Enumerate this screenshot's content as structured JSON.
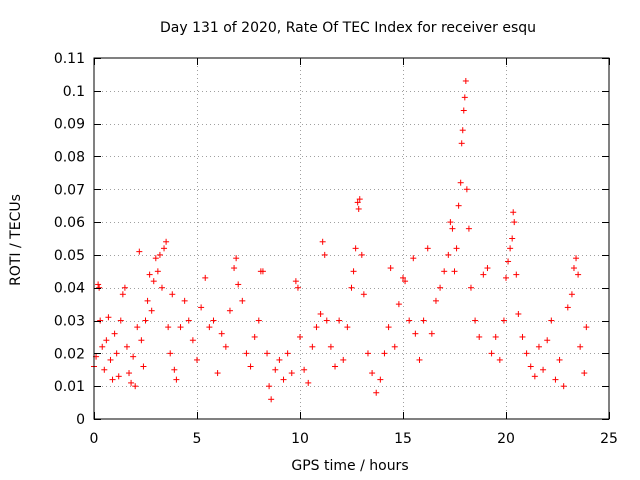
{
  "chart_data": {
    "type": "scatter",
    "title": "Day 131 of 2020, Rate Of TEC Index for receiver esqu",
    "xlabel": "GPS time / hours",
    "ylabel": "ROTI / TECUs",
    "xlim": [
      0,
      25
    ],
    "ylim": [
      0,
      0.11
    ],
    "xticks": [
      0,
      5,
      10,
      15,
      20,
      25
    ],
    "xtick_labels": [
      "0",
      "5",
      "10",
      "15",
      "20",
      "25"
    ],
    "yticks": [
      0,
      0.01,
      0.02,
      0.03,
      0.04,
      0.05,
      0.06,
      0.07,
      0.08,
      0.09,
      0.1,
      0.11
    ],
    "ytick_labels": [
      "0",
      "0.01",
      "0.02",
      "0.03",
      "0.04",
      "0.05",
      "0.06",
      "0.07",
      "0.08",
      "0.09",
      "0.1",
      "0.11"
    ],
    "grid": true,
    "marker": "+",
    "marker_color": "#ff0000",
    "series": [
      {
        "name": "ROTI",
        "points": [
          [
            0.0,
            0.016
          ],
          [
            0.1,
            0.019
          ],
          [
            0.2,
            0.041
          ],
          [
            0.25,
            0.04
          ],
          [
            0.3,
            0.03
          ],
          [
            0.4,
            0.022
          ],
          [
            0.5,
            0.015
          ],
          [
            0.6,
            0.024
          ],
          [
            0.7,
            0.031
          ],
          [
            0.8,
            0.018
          ],
          [
            0.9,
            0.012
          ],
          [
            1.0,
            0.026
          ],
          [
            1.1,
            0.02
          ],
          [
            1.2,
            0.013
          ],
          [
            1.3,
            0.03
          ],
          [
            1.4,
            0.038
          ],
          [
            1.5,
            0.04
          ],
          [
            1.6,
            0.022
          ],
          [
            1.7,
            0.014
          ],
          [
            1.8,
            0.011
          ],
          [
            1.9,
            0.019
          ],
          [
            2.0,
            0.01
          ],
          [
            2.1,
            0.028
          ],
          [
            2.2,
            0.051
          ],
          [
            2.3,
            0.024
          ],
          [
            2.4,
            0.016
          ],
          [
            2.5,
            0.03
          ],
          [
            2.6,
            0.036
          ],
          [
            2.7,
            0.044
          ],
          [
            2.8,
            0.033
          ],
          [
            2.9,
            0.042
          ],
          [
            3.0,
            0.049
          ],
          [
            3.1,
            0.045
          ],
          [
            3.2,
            0.05
          ],
          [
            3.3,
            0.04
          ],
          [
            3.4,
            0.052
          ],
          [
            3.5,
            0.054
          ],
          [
            3.6,
            0.028
          ],
          [
            3.7,
            0.02
          ],
          [
            3.8,
            0.038
          ],
          [
            3.9,
            0.015
          ],
          [
            4.0,
            0.012
          ],
          [
            4.2,
            0.028
          ],
          [
            4.4,
            0.036
          ],
          [
            4.6,
            0.03
          ],
          [
            4.8,
            0.024
          ],
          [
            5.0,
            0.018
          ],
          [
            5.2,
            0.034
          ],
          [
            5.4,
            0.043
          ],
          [
            5.6,
            0.028
          ],
          [
            5.8,
            0.03
          ],
          [
            6.0,
            0.014
          ],
          [
            6.2,
            0.026
          ],
          [
            6.4,
            0.022
          ],
          [
            6.6,
            0.033
          ],
          [
            6.8,
            0.046
          ],
          [
            6.9,
            0.049
          ],
          [
            7.0,
            0.041
          ],
          [
            7.2,
            0.036
          ],
          [
            7.4,
            0.02
          ],
          [
            7.6,
            0.016
          ],
          [
            7.8,
            0.025
          ],
          [
            8.0,
            0.03
          ],
          [
            8.1,
            0.045
          ],
          [
            8.2,
            0.045
          ],
          [
            8.4,
            0.02
          ],
          [
            8.5,
            0.01
          ],
          [
            8.6,
            0.006
          ],
          [
            8.8,
            0.015
          ],
          [
            9.0,
            0.018
          ],
          [
            9.2,
            0.012
          ],
          [
            9.4,
            0.02
          ],
          [
            9.6,
            0.014
          ],
          [
            9.8,
            0.042
          ],
          [
            9.9,
            0.04
          ],
          [
            10.0,
            0.025
          ],
          [
            10.2,
            0.015
          ],
          [
            10.4,
            0.011
          ],
          [
            10.6,
            0.022
          ],
          [
            10.8,
            0.028
          ],
          [
            11.0,
            0.032
          ],
          [
            11.1,
            0.054
          ],
          [
            11.2,
            0.05
          ],
          [
            11.3,
            0.03
          ],
          [
            11.5,
            0.022
          ],
          [
            11.7,
            0.016
          ],
          [
            11.9,
            0.03
          ],
          [
            12.1,
            0.018
          ],
          [
            12.3,
            0.028
          ],
          [
            12.5,
            0.04
          ],
          [
            12.6,
            0.045
          ],
          [
            12.7,
            0.052
          ],
          [
            12.8,
            0.066
          ],
          [
            12.85,
            0.064
          ],
          [
            12.9,
            0.067
          ],
          [
            13.0,
            0.05
          ],
          [
            13.1,
            0.038
          ],
          [
            13.3,
            0.02
          ],
          [
            13.5,
            0.014
          ],
          [
            13.7,
            0.008
          ],
          [
            13.9,
            0.012
          ],
          [
            14.1,
            0.02
          ],
          [
            14.3,
            0.028
          ],
          [
            14.4,
            0.046
          ],
          [
            14.6,
            0.022
          ],
          [
            14.8,
            0.035
          ],
          [
            15.0,
            0.043
          ],
          [
            15.1,
            0.042
          ],
          [
            15.3,
            0.03
          ],
          [
            15.5,
            0.049
          ],
          [
            15.6,
            0.026
          ],
          [
            15.8,
            0.018
          ],
          [
            16.0,
            0.03
          ],
          [
            16.2,
            0.052
          ],
          [
            16.4,
            0.026
          ],
          [
            16.6,
            0.036
          ],
          [
            16.8,
            0.04
          ],
          [
            17.0,
            0.045
          ],
          [
            17.2,
            0.05
          ],
          [
            17.3,
            0.06
          ],
          [
            17.4,
            0.058
          ],
          [
            17.5,
            0.045
          ],
          [
            17.6,
            0.052
          ],
          [
            17.7,
            0.065
          ],
          [
            17.8,
            0.072
          ],
          [
            17.85,
            0.084
          ],
          [
            17.9,
            0.088
          ],
          [
            17.95,
            0.094
          ],
          [
            18.0,
            0.098
          ],
          [
            18.05,
            0.103
          ],
          [
            18.1,
            0.07
          ],
          [
            18.2,
            0.058
          ],
          [
            18.3,
            0.04
          ],
          [
            18.5,
            0.03
          ],
          [
            18.7,
            0.025
          ],
          [
            18.9,
            0.044
          ],
          [
            19.1,
            0.046
          ],
          [
            19.3,
            0.02
          ],
          [
            19.5,
            0.025
          ],
          [
            19.7,
            0.018
          ],
          [
            19.9,
            0.03
          ],
          [
            20.0,
            0.043
          ],
          [
            20.1,
            0.048
          ],
          [
            20.2,
            0.052
          ],
          [
            20.3,
            0.055
          ],
          [
            20.35,
            0.063
          ],
          [
            20.4,
            0.06
          ],
          [
            20.5,
            0.044
          ],
          [
            20.6,
            0.032
          ],
          [
            20.8,
            0.025
          ],
          [
            21.0,
            0.02
          ],
          [
            21.2,
            0.016
          ],
          [
            21.4,
            0.013
          ],
          [
            21.6,
            0.022
          ],
          [
            21.8,
            0.015
          ],
          [
            22.0,
            0.024
          ],
          [
            22.2,
            0.03
          ],
          [
            22.4,
            0.012
          ],
          [
            22.6,
            0.018
          ],
          [
            22.8,
            0.01
          ],
          [
            23.0,
            0.034
          ],
          [
            23.2,
            0.038
          ],
          [
            23.3,
            0.046
          ],
          [
            23.4,
            0.049
          ],
          [
            23.5,
            0.044
          ],
          [
            23.6,
            0.022
          ],
          [
            23.8,
            0.014
          ],
          [
            23.9,
            0.028
          ]
        ]
      }
    ]
  }
}
